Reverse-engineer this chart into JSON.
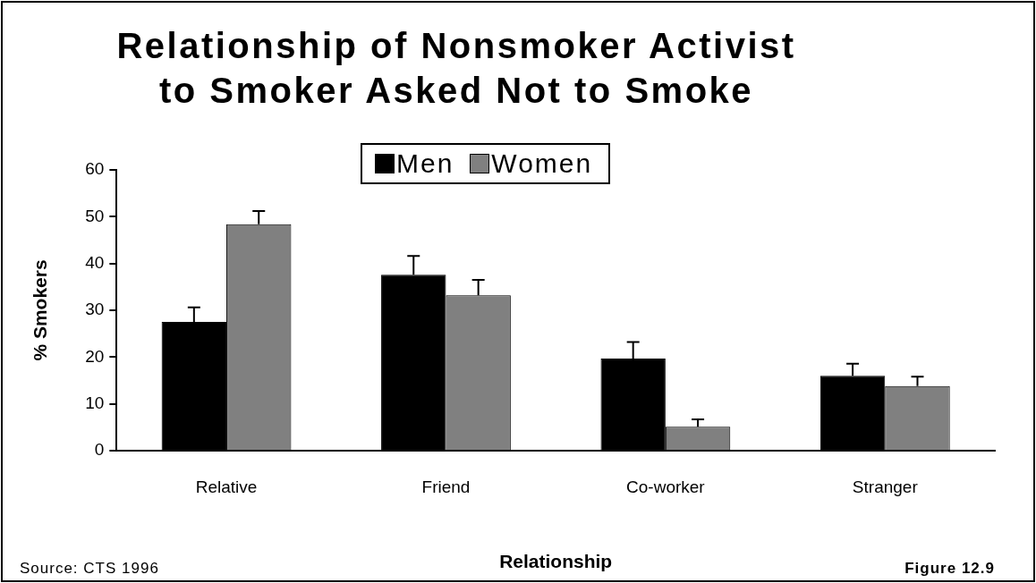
{
  "chart_data": {
    "type": "bar",
    "title": "Relationship of Nonsmoker Activist to Smoker Asked Not to Smoke",
    "xlabel": "Relationship",
    "ylabel": "% Smokers",
    "categories": [
      "Relative",
      "Friend",
      "Co-worker",
      "Stranger"
    ],
    "series": [
      {
        "name": "Men",
        "color": "#000000",
        "values": [
          27.5,
          37.6,
          19.7,
          16.0
        ],
        "errors": [
          [
            27.5,
            30.6
          ],
          [
            37.6,
            41.6
          ],
          [
            19.7,
            23.2
          ],
          [
            16.0,
            18.6
          ]
        ]
      },
      {
        "name": "Women",
        "color": "#808080",
        "values": [
          48.4,
          33.2,
          5.1,
          13.8
        ],
        "errors": [
          [
            48.4,
            51.2
          ],
          [
            33.2,
            36.5
          ],
          [
            5.1,
            6.7
          ],
          [
            13.8,
            15.8
          ]
        ]
      }
    ],
    "ylim": [
      0,
      60
    ],
    "yticks": [
      0,
      10,
      20,
      30,
      40,
      50,
      60
    ],
    "grid": false,
    "legend": "top",
    "annotations": [
      "Source: CTS 1996",
      "Figure 12.9"
    ]
  }
}
